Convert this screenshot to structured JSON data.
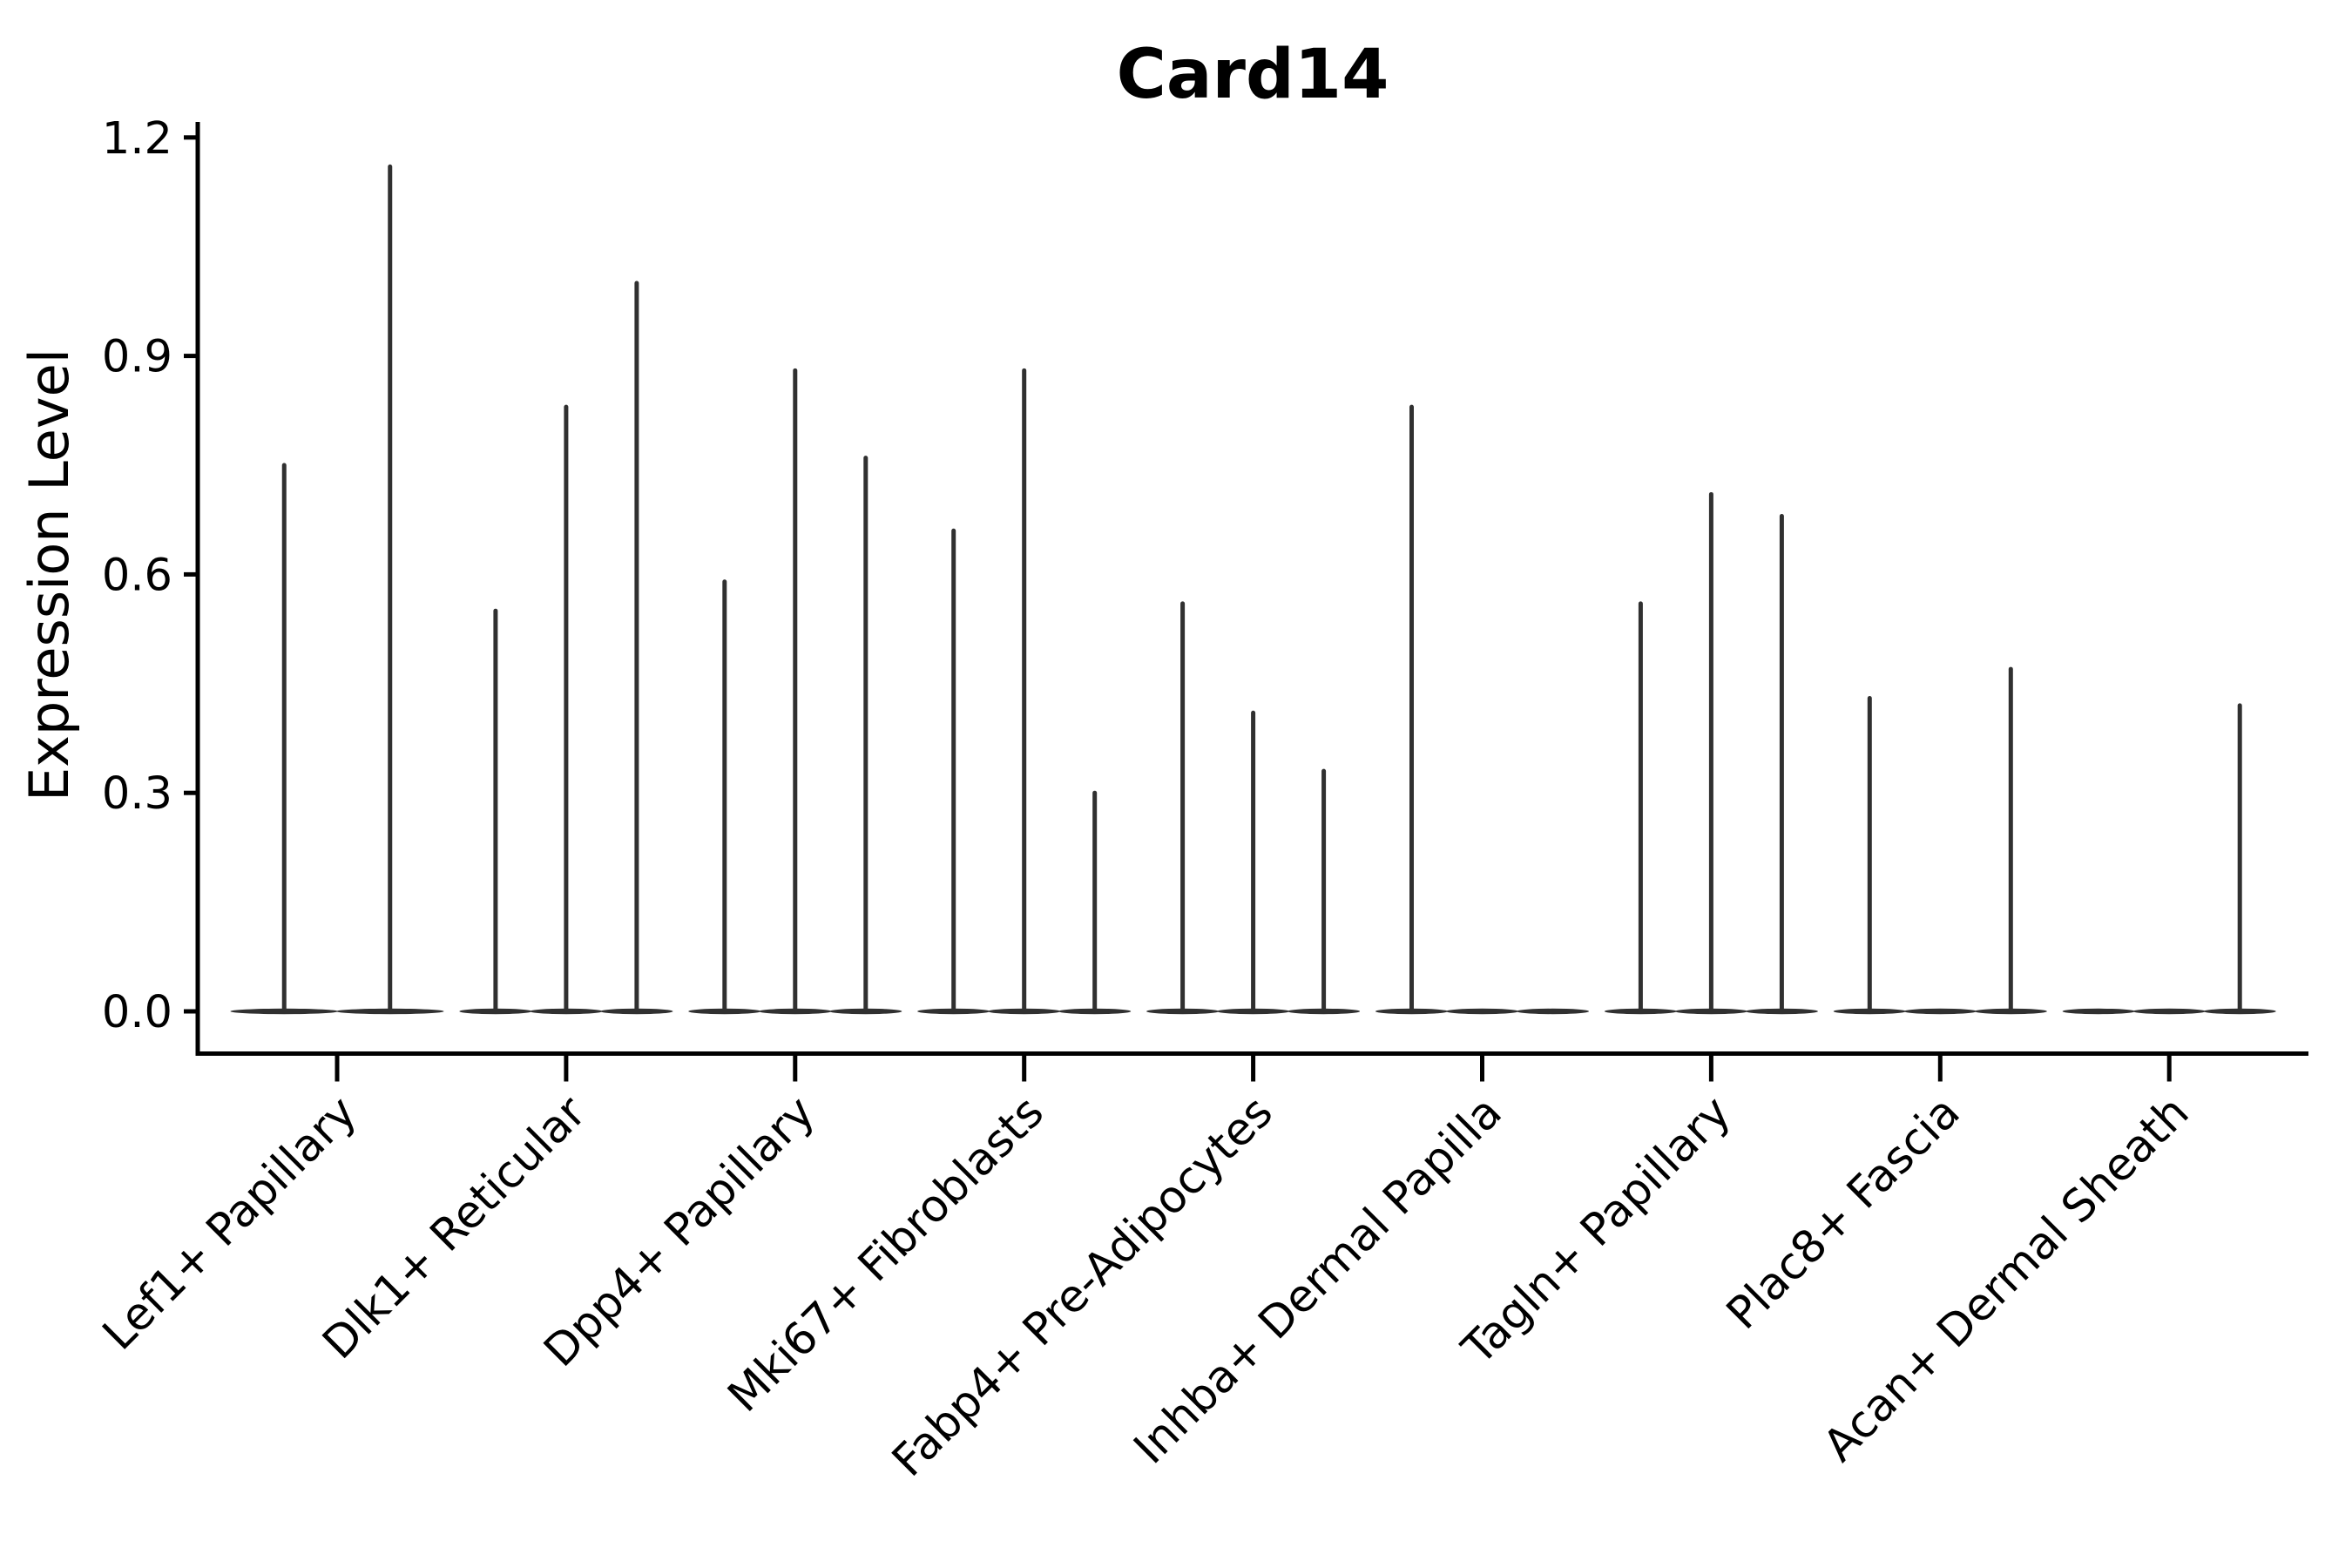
{
  "chart_data": {
    "type": "violin",
    "title": "Card14",
    "xlabel": "",
    "ylabel": "Expression Level",
    "ylim": [
      0,
      1.22
    ],
    "yticks": [
      0,
      0.3,
      0.6,
      0.9,
      1.2
    ],
    "ytick_labels": [
      "0.0",
      "0.3",
      "0.6",
      "0.9",
      "1.2"
    ],
    "grid": false,
    "legend": "none",
    "violin_shape": "near-zero-width spikes with flat base at 0 (expression mostly zero)",
    "colors": {
      "violin": "#303030",
      "axis": "#000000",
      "text": "#000000",
      "background": "#ffffff"
    },
    "categories": [
      "Lef1+ Papillary",
      "Dlk1+ Reticular",
      "Dpp4+ Papillary",
      "Mki67+ Fibroblasts",
      "Fabp4+ Pre-Adipocytes",
      "Inhba+ Dermal Papilla",
      "Tagln+ Papillary",
      "Plac8+ Fascia",
      "Acan+ Dermal Sheath"
    ],
    "groups": [
      {
        "label": "Lef1+ Papillary",
        "violin_peaks": [
          0.75,
          1.16
        ]
      },
      {
        "label": "Dlk1+ Reticular",
        "violin_peaks": [
          0.55,
          0.83,
          1.0
        ]
      },
      {
        "label": "Dpp4+ Papillary",
        "violin_peaks": [
          0.59,
          0.88,
          0.76
        ]
      },
      {
        "label": "Mki67+ Fibroblasts",
        "violin_peaks": [
          0.66,
          0.88,
          0.3
        ]
      },
      {
        "label": "Fabp4+ Pre-Adipocytes",
        "violin_peaks": [
          0.56,
          0.41,
          0.33
        ]
      },
      {
        "label": "Inhba+ Dermal Papilla",
        "violin_peaks": [
          0.83,
          0,
          0
        ]
      },
      {
        "label": "Tagln+ Papillary",
        "violin_peaks": [
          0.56,
          0.71,
          0.68
        ]
      },
      {
        "label": "Plac8+ Fascia",
        "violin_peaks": [
          0.43,
          0,
          0.47
        ]
      },
      {
        "label": "Acan+ Dermal Sheath",
        "violin_peaks": [
          0,
          0,
          0.42
        ]
      }
    ]
  }
}
